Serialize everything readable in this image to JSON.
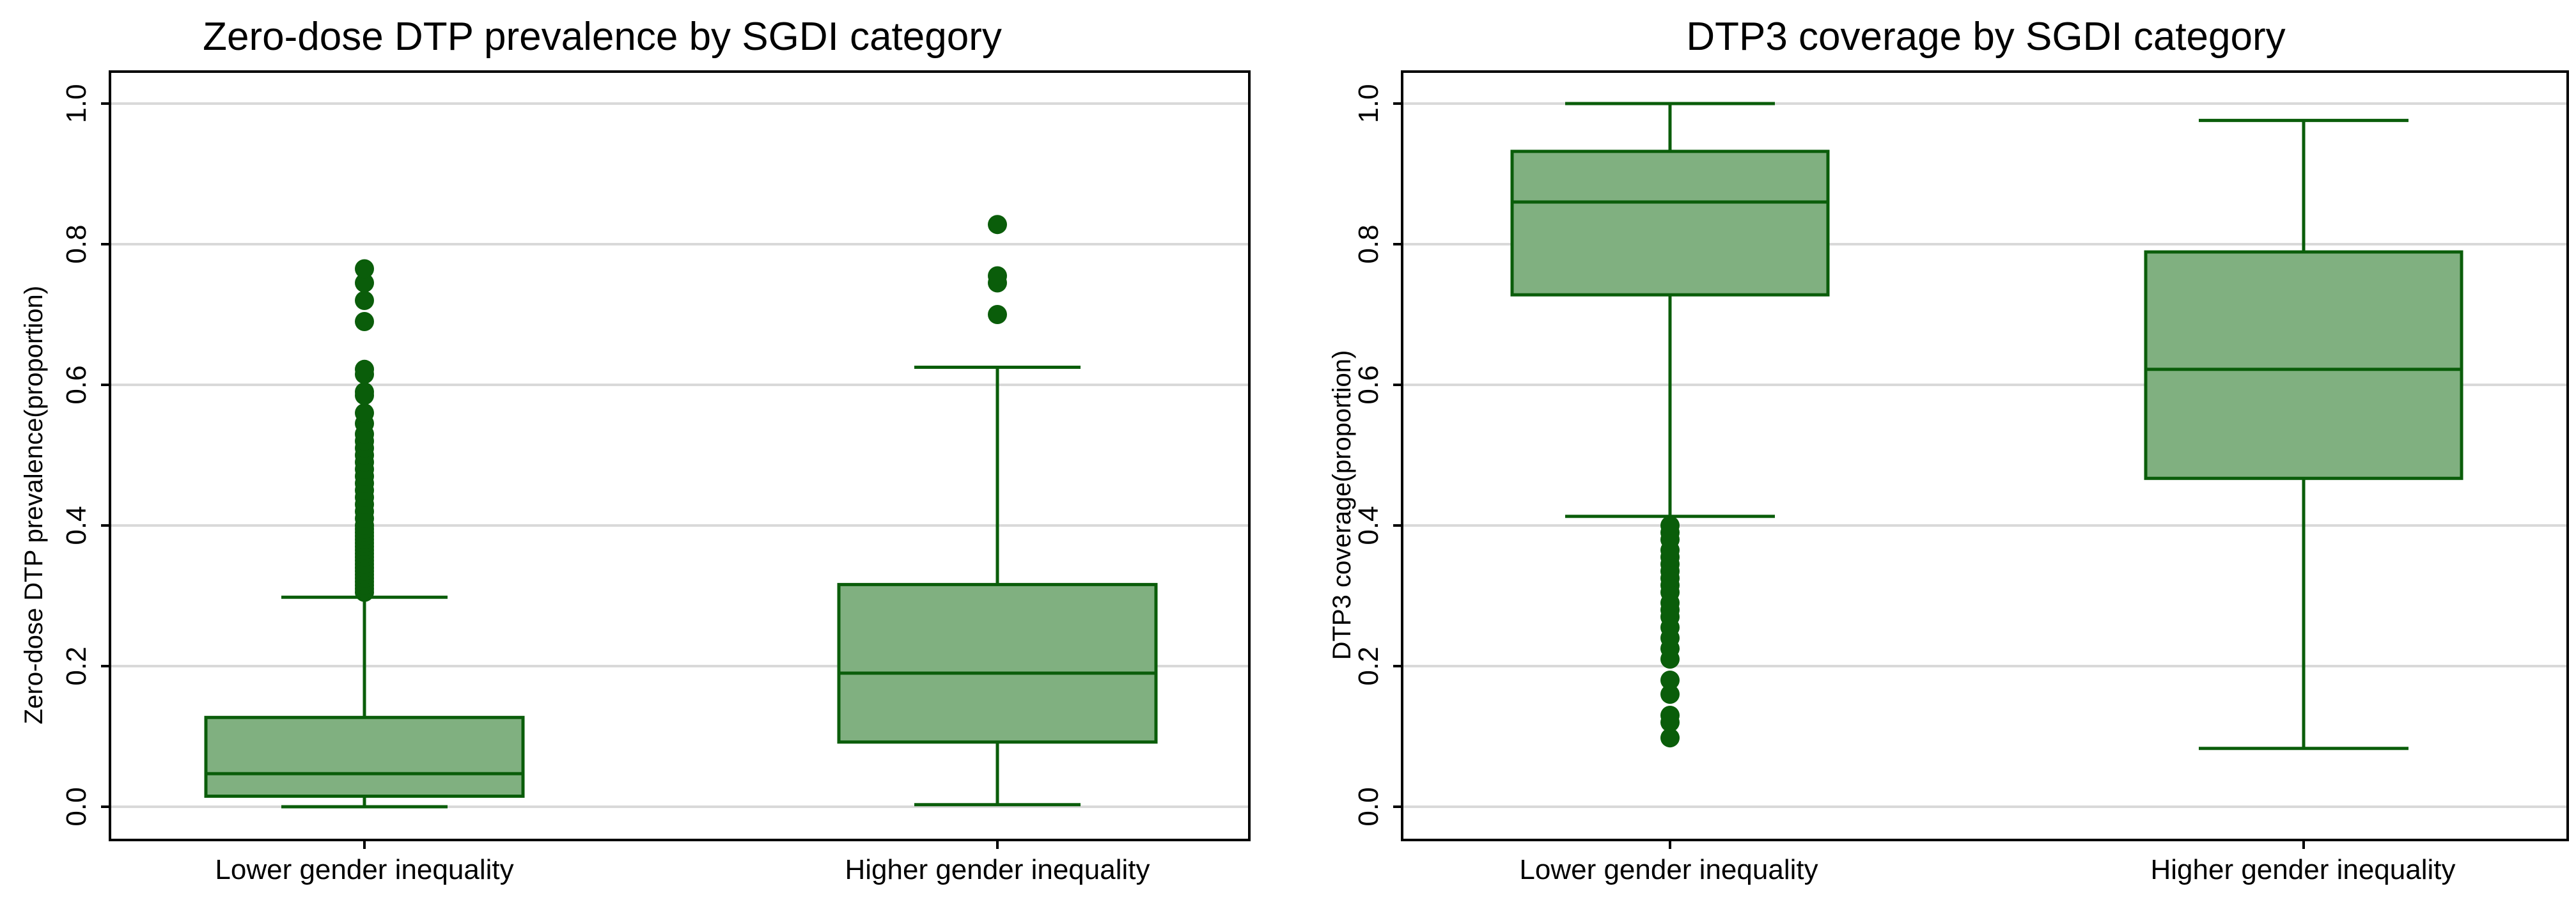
{
  "colors": {
    "box_fill": "#80b080",
    "box_stroke": "#0a5d0a",
    "outlier": "#0a5d0a",
    "grid": "#d9d9d9",
    "axis": "#000000"
  },
  "chart_data": [
    {
      "type": "box",
      "title": "Zero-dose DTP prevalence by SGDI category",
      "xlabel": "",
      "ylabel": "Zero-dose DTP prevalence(proportion)",
      "ylim": [
        0,
        1
      ],
      "yticks": [
        0,
        0.2,
        0.4,
        0.6,
        0.8,
        1
      ],
      "ytick_labels": [
        "0.0",
        "0.2",
        "0.4",
        "0.6",
        "0.8",
        "1.0"
      ],
      "grid": true,
      "categories": [
        "Lower gender inequality",
        "Higher gender inequality"
      ],
      "boxes": [
        {
          "category": "Lower gender inequality",
          "whisker_low": 0.0,
          "q1": 0.015,
          "median": 0.047,
          "q3": 0.127,
          "whisker_high": 0.298,
          "outliers": [
            0.305,
            0.31,
            0.315,
            0.32,
            0.325,
            0.33,
            0.335,
            0.34,
            0.345,
            0.35,
            0.355,
            0.36,
            0.365,
            0.37,
            0.375,
            0.38,
            0.385,
            0.39,
            0.395,
            0.4,
            0.41,
            0.42,
            0.43,
            0.44,
            0.45,
            0.46,
            0.47,
            0.48,
            0.49,
            0.5,
            0.51,
            0.52,
            0.53,
            0.545,
            0.56,
            0.585,
            0.59,
            0.615,
            0.622,
            0.69,
            0.72,
            0.745,
            0.765
          ]
        },
        {
          "category": "Higher gender inequality",
          "whisker_low": 0.003,
          "q1": 0.092,
          "median": 0.19,
          "q3": 0.316,
          "whisker_high": 0.625,
          "outliers": [
            0.7,
            0.745,
            0.755,
            0.828
          ]
        }
      ]
    },
    {
      "type": "box",
      "title": "DTP3 coverage by SGDI category",
      "xlabel": "",
      "ylabel": "DTP3 coverage(proportion)",
      "ylim": [
        0,
        1
      ],
      "yticks": [
        0,
        0.2,
        0.4,
        0.6,
        0.8,
        1
      ],
      "ytick_labels": [
        "0.0",
        "0.2",
        "0.4",
        "0.6",
        "0.8",
        "1.0"
      ],
      "grid": true,
      "categories": [
        "Lower gender inequality",
        "Higher gender inequality"
      ],
      "boxes": [
        {
          "category": "Lower gender inequality",
          "whisker_low": 0.413,
          "q1": 0.728,
          "median": 0.86,
          "q3": 0.932,
          "whisker_high": 1.0,
          "outliers": [
            0.098,
            0.12,
            0.13,
            0.16,
            0.18,
            0.21,
            0.225,
            0.24,
            0.255,
            0.27,
            0.28,
            0.29,
            0.305,
            0.315,
            0.325,
            0.335,
            0.345,
            0.355,
            0.365,
            0.38,
            0.39,
            0.4
          ]
        },
        {
          "category": "Higher gender inequality",
          "whisker_low": 0.083,
          "q1": 0.467,
          "median": 0.622,
          "q3": 0.789,
          "whisker_high": 0.976,
          "outliers": []
        }
      ]
    }
  ]
}
